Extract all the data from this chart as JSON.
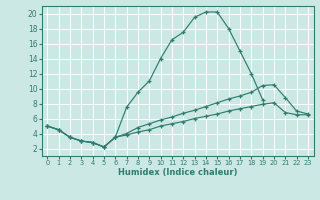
{
  "xlabel": "Humidex (Indice chaleur)",
  "bg_color": "#cce8e4",
  "grid_color": "#ffffff",
  "line_color": "#2e7d6e",
  "xlim": [
    -0.5,
    23.5
  ],
  "ylim": [
    1,
    21
  ],
  "xticks": [
    0,
    1,
    2,
    3,
    4,
    5,
    6,
    7,
    8,
    9,
    10,
    11,
    12,
    13,
    14,
    15,
    16,
    17,
    18,
    19,
    20,
    21,
    22,
    23
  ],
  "yticks": [
    2,
    4,
    6,
    8,
    10,
    12,
    14,
    16,
    18,
    20
  ],
  "series": [
    {
      "x": [
        0,
        1,
        2,
        3,
        4,
        5,
        6,
        7,
        8,
        9,
        10,
        11,
        12,
        13,
        14,
        15,
        16,
        17,
        18,
        19
      ],
      "y": [
        5,
        4.5,
        3.5,
        3.0,
        2.8,
        2.2,
        3.5,
        7.5,
        9.5,
        11.0,
        14.0,
        16.5,
        17.5,
        19.5,
        20.2,
        20.2,
        18.0,
        15.0,
        12.0,
        8.5
      ]
    },
    {
      "x": [
        0,
        1,
        2,
        3,
        4,
        5,
        6,
        7,
        8,
        9,
        10,
        11,
        12,
        13,
        14,
        15,
        16,
        17,
        18,
        19,
        20,
        21,
        22,
        23
      ],
      "y": [
        5.0,
        4.5,
        3.5,
        3.0,
        2.8,
        2.2,
        3.5,
        4.0,
        4.8,
        5.3,
        5.8,
        6.2,
        6.7,
        7.1,
        7.6,
        8.1,
        8.6,
        9.0,
        9.5,
        10.4,
        10.5,
        8.8,
        7.0,
        6.6
      ]
    },
    {
      "x": [
        0,
        1,
        2,
        3,
        4,
        5,
        6,
        7,
        8,
        9,
        10,
        11,
        12,
        13,
        14,
        15,
        16,
        17,
        18,
        19,
        20,
        21,
        22,
        23
      ],
      "y": [
        5.0,
        4.5,
        3.5,
        3.0,
        2.8,
        2.2,
        3.5,
        3.8,
        4.2,
        4.5,
        5.0,
        5.3,
        5.6,
        6.0,
        6.3,
        6.6,
        7.0,
        7.3,
        7.6,
        7.9,
        8.1,
        6.8,
        6.5,
        6.5
      ]
    }
  ]
}
